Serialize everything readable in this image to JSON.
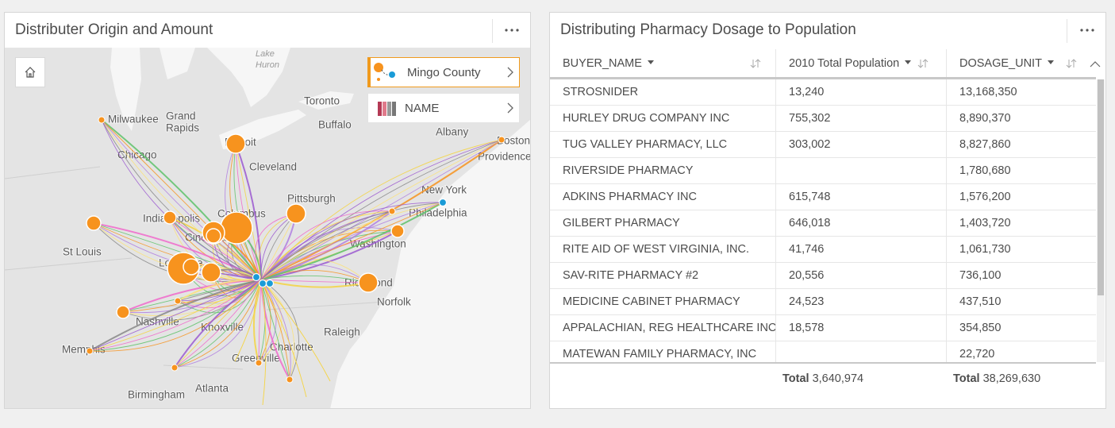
{
  "map_panel": {
    "title": "Distributer Origin and Amount",
    "legend": [
      "Mingo County",
      "NAME"
    ],
    "map_labels": [
      "Lake",
      "Huron",
      "Toronto",
      "Milwaukee",
      "Grand",
      "Rapids",
      "Buffalo",
      "Albany",
      "Boston",
      "Providence",
      "Chicago",
      "Detroit",
      "Cleveland",
      "New York",
      "Pittsburgh",
      "Indianapolis",
      "Columbus",
      "Philadelphia",
      "St Louis",
      "Cincinnati",
      "Washington",
      "Louisville",
      "Richmond",
      "Norfolk",
      "Nashville",
      "Knoxville",
      "Raleigh",
      "Memphis",
      "Charlotte",
      "Greenville",
      "Atlanta",
      "Birmingham"
    ]
  },
  "table_panel": {
    "title": "Distributing Pharmacy Dosage to Population",
    "columns": [
      "BUYER_NAME",
      "2010 Total Population",
      "DOSAGE_UNIT"
    ],
    "rows": [
      [
        "STROSNIDER",
        "13,240",
        "13,168,350"
      ],
      [
        "HURLEY DRUG COMPANY INC",
        "755,302",
        "8,890,370"
      ],
      [
        "TUG VALLEY PHARMACY, LLC",
        "303,002",
        "8,827,860"
      ],
      [
        "RIVERSIDE PHARMACY",
        null,
        "1,780,680"
      ],
      [
        "ADKINS PHARMACY INC",
        "615,748",
        "1,576,200"
      ],
      [
        "GILBERT PHARMACY",
        "646,018",
        "1,403,720"
      ],
      [
        "RITE AID OF WEST VIRGINIA, INC.",
        "41,746",
        "1,061,730"
      ],
      [
        "SAV-RITE PHARMACY #2",
        "20,556",
        "736,100"
      ],
      [
        "MEDICINE CABINET PHARMACY",
        "24,523",
        "437,510"
      ],
      [
        "APPALACHIAN, REG HEALTHCARE INC",
        "18,578",
        "354,850"
      ],
      [
        "MATEWAN FAMILY PHARMACY, INC",
        null,
        "22,720"
      ]
    ],
    "totals": [
      {
        "label": "Total",
        "value": "3,640,974"
      },
      {
        "label": "Total",
        "value": "38,269,630"
      }
    ]
  }
}
